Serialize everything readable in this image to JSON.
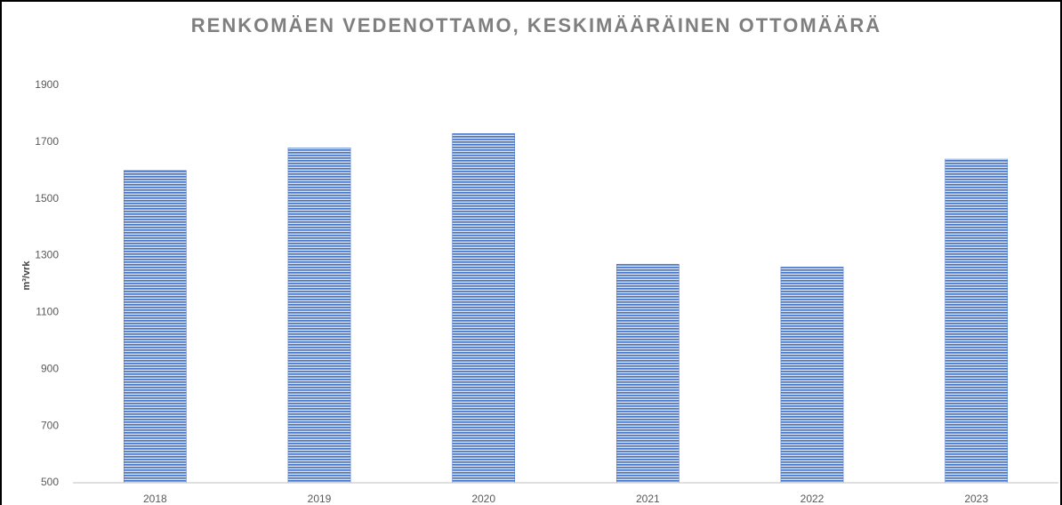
{
  "chart_data": {
    "type": "bar",
    "title": "RENKOMÄEN VEDENOTTAMO, KESKIMÄÄRÄINEN OTTOMÄÄRÄ",
    "y_label": "m³/vrk",
    "categories": [
      "2018",
      "2019",
      "2020",
      "2021",
      "2022",
      "2023"
    ],
    "values": [
      1600,
      1680,
      1730,
      1270,
      1260,
      1640
    ],
    "color": "#4472c4",
    "ylim": [
      500,
      1900
    ],
    "yticks": [
      500,
      700,
      900,
      1100,
      1300,
      1500,
      1700,
      1900
    ],
    "grid": false
  }
}
